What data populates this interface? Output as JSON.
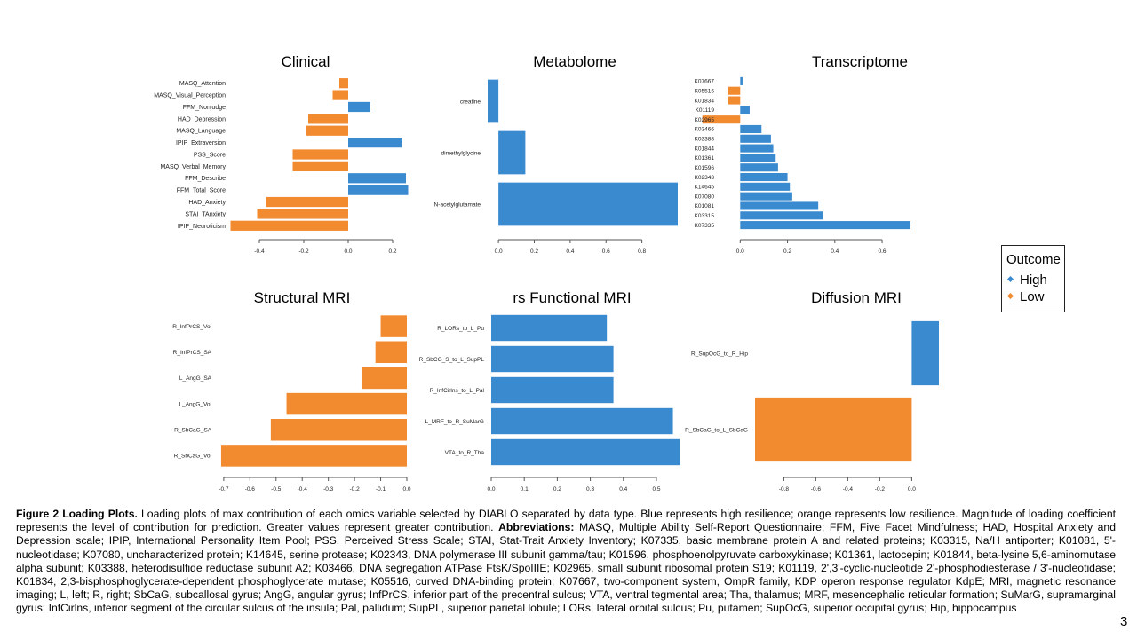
{
  "colors": {
    "high": "#3a8ad0",
    "low": "#f28a30"
  },
  "legend": {
    "title": "Outcome",
    "items": [
      {
        "label": "High",
        "color": "#3a8ad0"
      },
      {
        "label": "Low",
        "color": "#f28a30"
      }
    ]
  },
  "caption": {
    "label": "Figure 2 Loading Plots.",
    "text": " Loading plots of max contribution of each omics variable selected by DIABLO separated by data type. Blue represents high resilience; orange represents low resilience. Magnitude of loading coefficient represents the level of contribution for prediction. Greater values represent greater contribution. ",
    "abbr_label": "Abbreviations:",
    "abbr_text": " MASQ, Multiple Ability Self-Report Questionnaire; FFM, Five Facet Mindfulness; HAD, Hospital Anxiety and Depression scale; IPIP, International Personality Item Pool; PSS, Perceived Stress Scale; STAI, Stat-Trait Anxiety Inventory; K07335, basic membrane protein A and related proteins; K03315, Na/H antiporter; K01081, 5'-nucleotidase; K07080, uncharacterized protein; K14645, serine protease; K02343, DNA polymerase III subunit gamma/tau; K01596, phosphoenolpyruvate carboxykinase; K01361, lactocepin; K01844, beta-lysine 5,6-aminomutase alpha subunit; K03388, heterodisulfide reductase subunit A2; K03466, DNA segregation ATPase FtsK/SpoIIIE; K02965, small subunit ribosomal protein S19; K01119, 2',3'-cyclic-nucleotide 2'-phosphodiesterase / 3'-nucleotidase; K01834, 2,3-bisphosphoglycerate-dependent phosphoglycerate mutase; K05516, curved DNA-binding protein; K07667, two-component system, OmpR family, KDP operon response regulator KdpE; MRI, magnetic resonance imaging; L, left; R, right; SbCaG, subcallosal gyrus; AngG, angular gyrus; InfPrCS, inferior part of the precentral sulcus; VTA, ventral tegmental area; Tha, thalamus; MRF, mesencephalic reticular formation; SuMarG, supramarginal gyrus; InfCirlns, inferior segment of the circular sulcus of the insula; Pal, pallidum; SupPL, superior parietal lobule; LORs, lateral orbital sulcus; Pu, putamen; SupOcG, superior occipital gyrus; Hip, hippocampus"
  },
  "page_number": "3",
  "chart_data": [
    {
      "type": "bar",
      "orientation": "horizontal",
      "title": "Clinical",
      "xlim": [
        -0.52,
        0.28
      ],
      "xticks": [
        -0.4,
        -0.2,
        0.0,
        0.2
      ],
      "xtick_labels": [
        "-0.4",
        "-0.2",
        "0.0",
        "0.2"
      ],
      "categories": [
        "MASQ_Attention",
        "MASQ_Visual_Perception",
        "FFM_Nonjudge",
        "HAD_Depression",
        "MASQ_Language",
        "IPIP_Extraversion",
        "PSS_Score",
        "MASQ_Verbal_Memory",
        "FFM_Describe",
        "FFM_Total_Score",
        "HAD_Anxiety",
        "STAI_TAnxiety",
        "IPIP_Neuroticism"
      ],
      "values": [
        -0.04,
        -0.07,
        0.1,
        -0.18,
        -0.19,
        0.24,
        -0.25,
        -0.25,
        0.26,
        0.27,
        -0.37,
        -0.41,
        -0.53
      ],
      "groups": [
        "Low",
        "Low",
        "High",
        "Low",
        "Low",
        "High",
        "Low",
        "Low",
        "High",
        "High",
        "Low",
        "Low",
        "Low"
      ]
    },
    {
      "type": "bar",
      "orientation": "horizontal",
      "title": "Metabolome",
      "xlim": [
        -0.06,
        1.0
      ],
      "xticks": [
        0.0,
        0.2,
        0.4,
        0.6,
        0.8
      ],
      "xtick_labels": [
        "0.0",
        "0.2",
        "0.4",
        "0.6",
        "0.8"
      ],
      "categories": [
        "creatine",
        "dimethylglycine",
        "N-acetylglutamate"
      ],
      "values": [
        -0.06,
        0.15,
        1.0
      ],
      "groups": [
        "High",
        "High",
        "High"
      ]
    },
    {
      "type": "bar",
      "orientation": "horizontal",
      "title": "Transcriptome",
      "xlim": [
        -0.08,
        0.72
      ],
      "xticks": [
        0.0,
        0.2,
        0.4,
        0.6
      ],
      "xtick_labels": [
        "0.0",
        "0.2",
        "0.4",
        "0.6"
      ],
      "categories": [
        "K07667",
        "K05516",
        "K01834",
        "K01119",
        "K02965",
        "K03466",
        "K03388",
        "K01844",
        "K01361",
        "K01596",
        "K02343",
        "K14645",
        "K07080",
        "K01081",
        "K03315",
        "K07335"
      ],
      "values": [
        0.01,
        -0.05,
        -0.05,
        0.04,
        -0.16,
        0.09,
        0.13,
        0.14,
        0.15,
        0.16,
        0.2,
        0.21,
        0.22,
        0.33,
        0.35,
        0.72
      ],
      "groups": [
        "High",
        "Low",
        "Low",
        "High",
        "Low",
        "High",
        "High",
        "High",
        "High",
        "High",
        "High",
        "High",
        "High",
        "High",
        "High",
        "High"
      ]
    },
    {
      "type": "bar",
      "orientation": "horizontal",
      "title": "Structural MRI",
      "xlim": [
        -0.72,
        0.0
      ],
      "xticks": [
        -0.7,
        -0.6,
        -0.5,
        -0.4,
        -0.3,
        -0.2,
        -0.1,
        0.0
      ],
      "xtick_labels": [
        "-0.7",
        "-0.6",
        "-0.5",
        "-0.4",
        "-0.3",
        "-0.2",
        "-0.1",
        "0.0"
      ],
      "categories": [
        "R_InfPrCS_Vol",
        "R_InfPrCS_SA",
        "L_AngG_SA",
        "L_AngG_Vol",
        "R_SbCaG_SA",
        "R_SbCaG_Vol"
      ],
      "values": [
        -0.1,
        -0.12,
        -0.17,
        -0.46,
        -0.52,
        -0.71
      ],
      "groups": [
        "Low",
        "Low",
        "Low",
        "Low",
        "Low",
        "Low"
      ]
    },
    {
      "type": "bar",
      "orientation": "horizontal",
      "title": "rs Functional MRI",
      "xlim": [
        0.0,
        0.57
      ],
      "xticks": [
        0.0,
        0.1,
        0.2,
        0.3,
        0.4,
        0.5
      ],
      "xtick_labels": [
        "0.0",
        "0.1",
        "0.2",
        "0.3",
        "0.4",
        "0.5"
      ],
      "categories": [
        "R_LORs_to_L_Pu",
        "R_SbCG_S_to_L_SupPL",
        "R_InfCirlns_to_L_Pal",
        "L_MRF_to_R_SuMarG",
        "VTA_to_R_Tha"
      ],
      "values": [
        0.35,
        0.37,
        0.37,
        0.55,
        0.57
      ],
      "groups": [
        "High",
        "High",
        "High",
        "High",
        "High"
      ]
    },
    {
      "type": "bar",
      "orientation": "horizontal",
      "title": "Diffusion MRI",
      "xlim": [
        -0.98,
        0.17
      ],
      "xticks": [
        -0.8,
        -0.6,
        -0.4,
        -0.2,
        0.0
      ],
      "xtick_labels": [
        "-0.8",
        "-0.6",
        "-0.4",
        "-0.2",
        "0.0"
      ],
      "categories": [
        "R_SupOcG_to_R_Hip",
        "R_SbCaG_to_L_SbCaG"
      ],
      "values": [
        0.17,
        -0.98
      ],
      "groups": [
        "High",
        "Low"
      ]
    }
  ]
}
